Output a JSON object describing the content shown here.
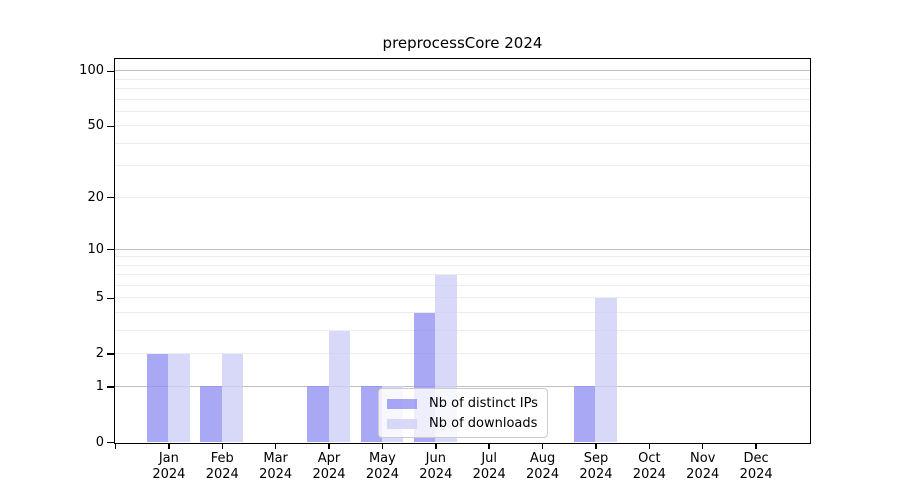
{
  "title": "preprocessCore 2024",
  "colors": {
    "bar_ips": "rgba(143,143,242,0.78)",
    "bar_downloads": "rgba(206,206,247,0.80)",
    "grid_major": "#c0c0c0",
    "grid_minor": "#ececec",
    "axis": "#000000",
    "legend_border": "#cbcbcb",
    "legend_bg": "rgba(255,255,255,0.8)",
    "text": "#000000"
  },
  "chart_data": {
    "type": "bar",
    "title": "preprocessCore 2024",
    "categories": [
      "Jan",
      "Feb",
      "Mar",
      "Apr",
      "May",
      "Jun",
      "Jul",
      "Aug",
      "Sep",
      "Oct",
      "Nov",
      "Dec"
    ],
    "category_year": "2024",
    "series": [
      {
        "key": "ips",
        "name": "Nb of distinct IPs",
        "values": [
          2,
          1,
          0,
          1,
          1,
          4,
          0,
          0,
          1,
          0,
          0,
          0
        ]
      },
      {
        "key": "downloads",
        "name": "Nb of downloads",
        "values": [
          2,
          2,
          0,
          3,
          1,
          7,
          0,
          0,
          5,
          0,
          0,
          0
        ]
      }
    ],
    "xlabel": "",
    "ylabel": "",
    "yscale": "log1p",
    "ylim": [
      0,
      116
    ],
    "yticks": [
      0,
      1,
      2,
      5,
      10,
      20,
      50,
      100
    ],
    "grid": {
      "major": [
        1,
        10,
        100
      ],
      "minor": [
        2,
        3,
        4,
        5,
        6,
        7,
        8,
        9,
        20,
        30,
        40,
        50,
        60,
        70,
        80,
        90
      ]
    },
    "bar_width_fraction": 0.4,
    "legend_position": "lower center"
  }
}
